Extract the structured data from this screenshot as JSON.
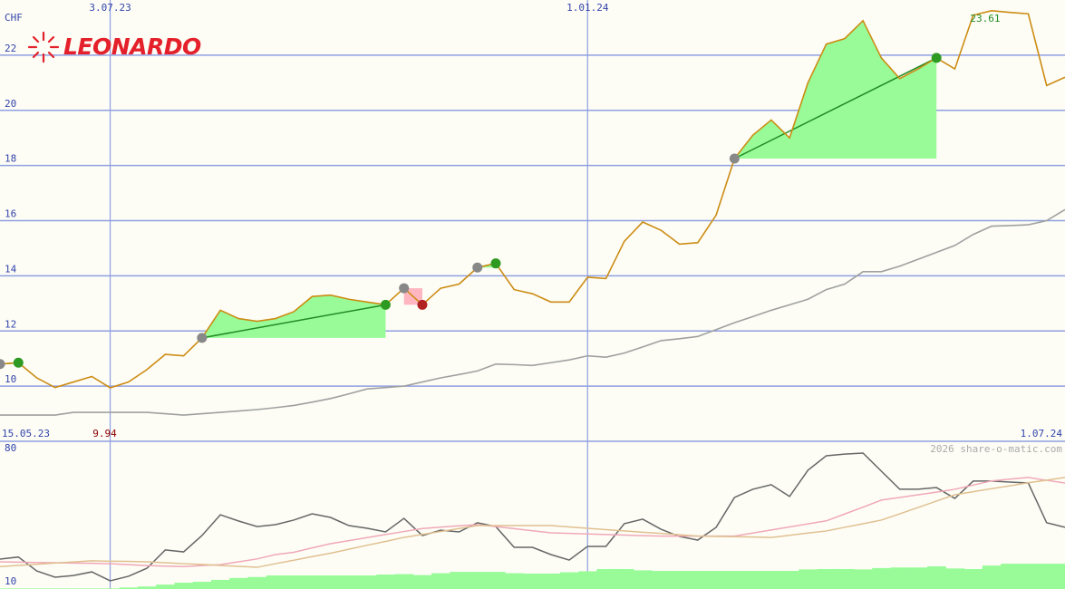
{
  "logo": "LEONARDO",
  "watermark": "2026 share-o-matic.com",
  "chart_data": [
    {
      "type": "line",
      "y_label": "CHF",
      "categories": [
        "15.05.23",
        null,
        null,
        null,
        null,
        null,
        "3.07.23",
        null,
        null,
        null,
        null,
        null,
        null,
        null,
        null,
        null,
        null,
        null,
        null,
        null,
        null,
        null,
        null,
        null,
        null,
        null,
        null,
        null,
        null,
        null,
        null,
        null,
        "1.01.24",
        null,
        null,
        null,
        null,
        null,
        null,
        null,
        null,
        null,
        null,
        null,
        null,
        null,
        null,
        null,
        null,
        null,
        null,
        null,
        null,
        null,
        null,
        null,
        null,
        null,
        "1.07.24"
      ],
      "series": [
        {
          "color": "#cc8c14",
          "values": [
            10.8,
            10.85,
            10.3,
            9.95,
            10.15,
            10.35,
            9.94,
            10.15,
            10.6,
            11.15,
            11.1,
            11.75,
            12.75,
            12.45,
            12.35,
            12.45,
            12.7,
            13.25,
            13.3,
            13.15,
            13.05,
            12.95,
            13.55,
            12.95,
            13.55,
            13.7,
            14.3,
            14.45,
            13.5,
            13.35,
            13.05,
            13.05,
            13.95,
            13.9,
            15.25,
            15.95,
            15.65,
            15.15,
            15.2,
            16.2,
            18.25,
            19.1,
            19.65,
            19.0,
            21.0,
            22.4,
            22.6,
            23.25,
            21.9,
            21.15,
            21.5,
            21.9,
            21.5,
            23.45,
            23.61,
            23.55,
            23.5,
            20.9,
            21.2
          ]
        },
        {
          "color": "#a0a0a0",
          "values": [
            8.95,
            8.95,
            8.95,
            8.95,
            9.05,
            9.05,
            9.05,
            9.05,
            9.05,
            9.0,
            8.95,
            9.0,
            9.05,
            9.1,
            9.15,
            9.22,
            9.3,
            9.42,
            9.55,
            9.72,
            9.9,
            9.95,
            10.0,
            10.15,
            10.3,
            10.42,
            10.55,
            10.8,
            10.78,
            10.75,
            10.85,
            10.95,
            11.1,
            11.05,
            11.2,
            11.42,
            11.65,
            11.72,
            11.8,
            12.05,
            12.3,
            12.52,
            12.75,
            12.95,
            13.15,
            13.5,
            13.7,
            14.15,
            14.15,
            14.35,
            14.6,
            14.85,
            15.1,
            15.5,
            15.8,
            15.82,
            15.85,
            16.0,
            16.4
          ]
        }
      ],
      "trades": [
        {
          "buy": 0,
          "sell": 1
        },
        {
          "buy": 11,
          "sell": 21
        },
        {
          "buy": 22,
          "sell": 23
        },
        {
          "buy": 26,
          "sell": 27
        },
        {
          "buy": 40,
          "sell": 51
        }
      ],
      "ylim": [
        8,
        24
      ],
      "yticks": [
        10,
        12,
        14,
        16,
        18,
        20,
        22
      ],
      "grid": true,
      "grid_color": "#8f9fe0"
    },
    {
      "type": "line",
      "series": [
        {
          "type": "bar",
          "color": "#98fb98",
          "values": [
            6.5,
            6.5,
            6.5,
            6.5,
            6.5,
            6.5,
            6.5,
            7,
            7.5,
            8.5,
            9.5,
            10,
            11,
            12,
            12.5,
            13.3,
            13.3,
            13.3,
            13.3,
            13.3,
            13.3,
            13.8,
            14,
            13.5,
            14.5,
            15.2,
            15.2,
            15.2,
            14.5,
            14.3,
            14.3,
            15,
            15.5,
            16.7,
            16.7,
            16,
            15.7,
            15.7,
            15.7,
            15.7,
            15.7,
            15.7,
            15.7,
            15.7,
            16.5,
            16.7,
            16.7,
            16.5,
            17.2,
            17.5,
            17.5,
            18.1,
            17,
            16.7,
            18.5,
            19.5,
            19.5,
            19.5,
            19.5
          ]
        },
        {
          "color": "#666666",
          "values": [
            21.9,
            23,
            15.7,
            12.4,
            13.3,
            15.2,
            10.5,
            12.9,
            17.1,
            26.7,
            25.7,
            34.3,
            45.2,
            41.9,
            39,
            40,
            42.4,
            45.7,
            43.8,
            39.5,
            38.1,
            36.2,
            43.3,
            34.3,
            37.1,
            36.2,
            41,
            39,
            28.1,
            28.1,
            24.3,
            21.4,
            28.6,
            28.6,
            40.5,
            42.9,
            37.6,
            33.8,
            31.9,
            38.6,
            54.3,
            58.6,
            61,
            54.8,
            68.6,
            76.2,
            77.1,
            77.6,
            68.1,
            58.6,
            58.6,
            59.5,
            53.8,
            62.9,
            62.9,
            62.4,
            61.9,
            41,
            38.6
          ]
        },
        {
          "color": "#f0a8b8",
          "values": [
            20.5,
            20.3,
            20.1,
            20,
            19.8,
            19.7,
            19.5,
            19,
            18.5,
            18.2,
            18,
            18.5,
            19,
            20.5,
            22,
            24.3,
            25.5,
            27.8,
            30,
            31.6,
            33.2,
            34.8,
            36.4,
            38,
            38.7,
            39.4,
            40,
            39,
            37.9,
            36.8,
            35.7,
            35.4,
            35.1,
            34.8,
            34.5,
            34.2,
            34,
            34,
            34,
            34,
            34,
            35.6,
            37.2,
            38.8,
            40.4,
            42,
            45.6,
            49.2,
            52.9,
            54.3,
            55.7,
            57.1,
            58.6,
            60.8,
            63,
            63.9,
            64.8,
            63.3,
            61.9
          ]
        },
        {
          "color": "#e0c090",
          "values": [
            18,
            18.6,
            19.2,
            19.8,
            20.4,
            21,
            20.8,
            20.7,
            20.5,
            20,
            19.5,
            19.1,
            18.6,
            18.1,
            17.6,
            19.5,
            21.3,
            23.2,
            25,
            27.1,
            29.2,
            31.2,
            33.3,
            34.9,
            36.4,
            38,
            39.5,
            39.5,
            39.5,
            39.5,
            39.5,
            38.8,
            38.1,
            37.4,
            36.7,
            36,
            35.4,
            34.7,
            34,
            33.8,
            33.7,
            33.5,
            33.3,
            34.4,
            35.6,
            36.7,
            38.6,
            40.5,
            42.4,
            45.7,
            49,
            52.4,
            55.7,
            57.3,
            58.9,
            60.4,
            62,
            63.4,
            64.8
          ]
        }
      ],
      "ylim": [
        6.2,
        83.8
      ],
      "yticks": [
        80,
        10
      ]
    }
  ]
}
